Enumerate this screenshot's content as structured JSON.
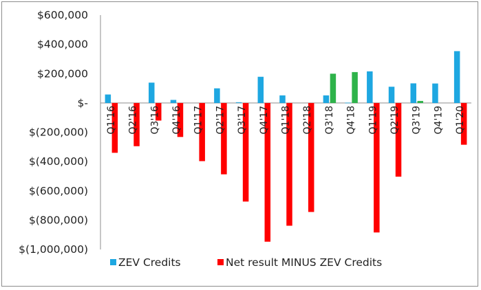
{
  "chart_data": {
    "type": "bar",
    "categories": [
      "Q1'16",
      "Q2'16",
      "Q3'16",
      "Q4'16",
      "Q1'17",
      "Q2'17",
      "Q3'17",
      "Q4'17",
      "Q1'18",
      "Q2'18",
      "Q3'18",
      "Q4'18",
      "Q1'19",
      "Q2'19",
      "Q3'19",
      "Q4'19",
      "Q1'20"
    ],
    "series": [
      {
        "name": "ZEV Credits",
        "color": "#1ea7e1",
        "values": [
          58000,
          0,
          139000,
          21000,
          0,
          100000,
          5000,
          179000,
          52000,
          0,
          52000,
          2000,
          216000,
          111000,
          134000,
          133000,
          354000
        ]
      },
      {
        "name": "",
        "color": "#2eb34a",
        "values": [
          0,
          0,
          0,
          0,
          0,
          0,
          0,
          0,
          0,
          0,
          200000,
          211000,
          0,
          0,
          14000,
          0,
          0
        ]
      },
      {
        "name": "Net result MINUS ZEV Credits",
        "color": "#ff0000",
        "values": [
          -340000,
          -295000,
          -120000,
          -232000,
          -397000,
          -487000,
          -673000,
          -947000,
          -838000,
          -744000,
          0,
          0,
          -884000,
          -503000,
          0,
          0,
          -285000
        ]
      }
    ],
    "yticks": [
      600000,
      400000,
      200000,
      0,
      -200000,
      -400000,
      -600000,
      -800000,
      -1000000
    ],
    "ytick_labels": [
      "$600,000",
      "$400,000",
      "$200,000",
      "$-",
      "$(200,000)",
      "$(400,000)",
      "$(600,000)",
      "$(800,000)",
      "$(1,000,000)"
    ],
    "ylim": [
      -1000000,
      600000
    ],
    "grid": false,
    "legend": {
      "placement": "bottom",
      "entries": [
        {
          "label": "ZEV Credits",
          "color": "#1ea7e1"
        },
        {
          "label": "Net result MINUS ZEV Credits",
          "color": "#ff0000"
        }
      ]
    }
  }
}
